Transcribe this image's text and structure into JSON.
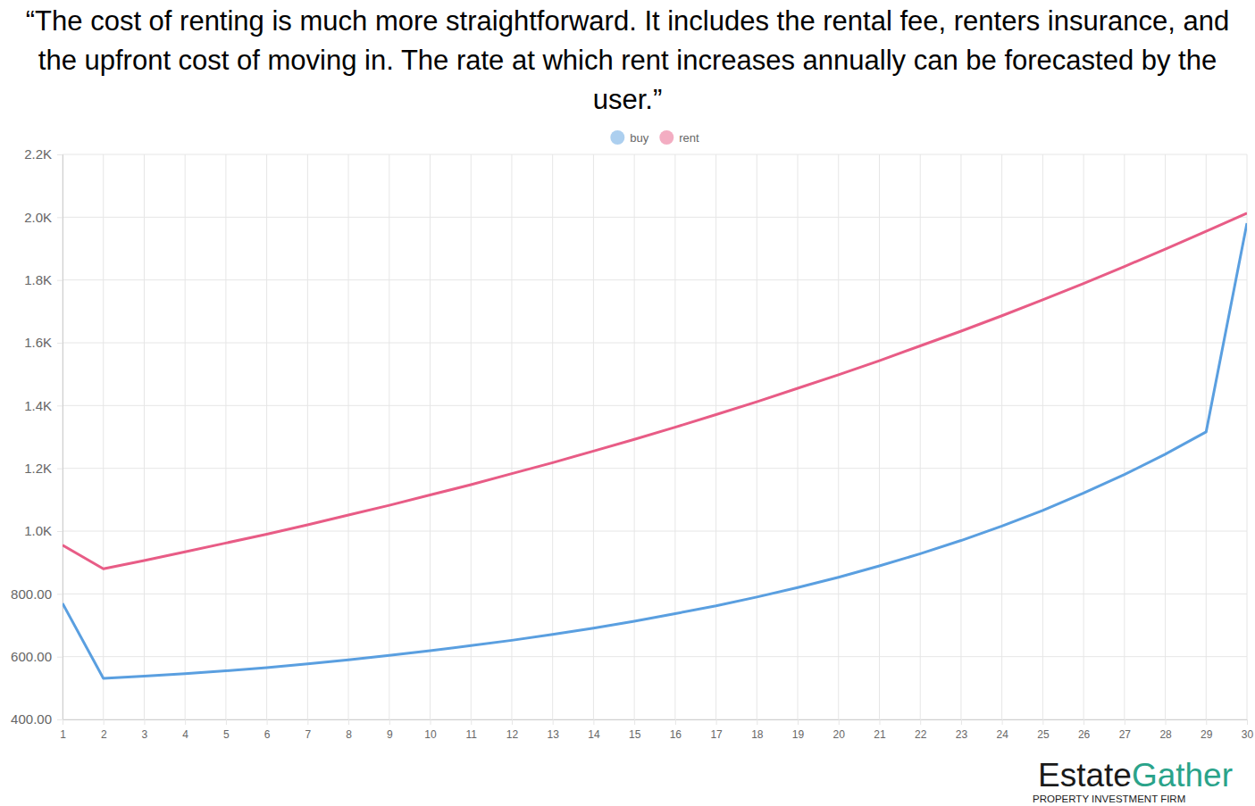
{
  "chart_data": {
    "type": "line",
    "title": "“The cost of renting is much more straightforward. It includes the rental fee, renters insurance, and the upfront cost of moving in. The rate at which rent increases annually can be forecasted by the user.”",
    "x": [
      1,
      2,
      3,
      4,
      5,
      6,
      7,
      8,
      9,
      10,
      11,
      12,
      13,
      14,
      15,
      16,
      17,
      18,
      19,
      20,
      21,
      22,
      23,
      24,
      25,
      26,
      27,
      28,
      29,
      30
    ],
    "series": [
      {
        "name": "buy",
        "color": "#5a9fe0",
        "values": [
          770,
          531,
          538,
          546,
          555,
          565,
          577,
          590,
          604,
          619,
          635,
          652,
          671,
          691,
          713,
          737,
          762,
          790,
          820,
          853,
          889,
          928,
          970,
          1016,
          1066,
          1121,
          1180,
          1245,
          1316,
          1981
        ]
      },
      {
        "name": "rent",
        "color": "#e85c86",
        "values": [
          955,
          880,
          906,
          934,
          962,
          990,
          1020,
          1051,
          1082,
          1115,
          1148,
          1183,
          1218,
          1255,
          1292,
          1331,
          1371,
          1412,
          1455,
          1498,
          1543,
          1590,
          1637,
          1686,
          1737,
          1789,
          1843,
          1898,
          1955,
          2013
        ]
      }
    ],
    "xlim": [
      1,
      30
    ],
    "xticks": [
      1,
      2,
      3,
      4,
      5,
      6,
      7,
      8,
      9,
      10,
      11,
      12,
      13,
      14,
      15,
      16,
      17,
      18,
      19,
      20,
      21,
      22,
      23,
      24,
      25,
      26,
      27,
      28,
      29,
      30
    ],
    "ylim": [
      400,
      2200
    ],
    "yticks": [
      {
        "value": 400,
        "label": "400.00"
      },
      {
        "value": 600,
        "label": "600.00"
      },
      {
        "value": 800,
        "label": "800.00"
      },
      {
        "value": 1000,
        "label": "1.0K"
      },
      {
        "value": 1200,
        "label": "1.2K"
      },
      {
        "value": 1400,
        "label": "1.4K"
      },
      {
        "value": 1600,
        "label": "1.6K"
      },
      {
        "value": 1800,
        "label": "1.8K"
      },
      {
        "value": 2000,
        "label": "2.0K"
      },
      {
        "value": 2200,
        "label": "2.2K"
      }
    ],
    "grid": true,
    "legend": "top",
    "logo": {
      "text": [
        "Estate",
        "Gather"
      ],
      "tagline": "PROPERTY INVESTMENT FIRM"
    }
  }
}
